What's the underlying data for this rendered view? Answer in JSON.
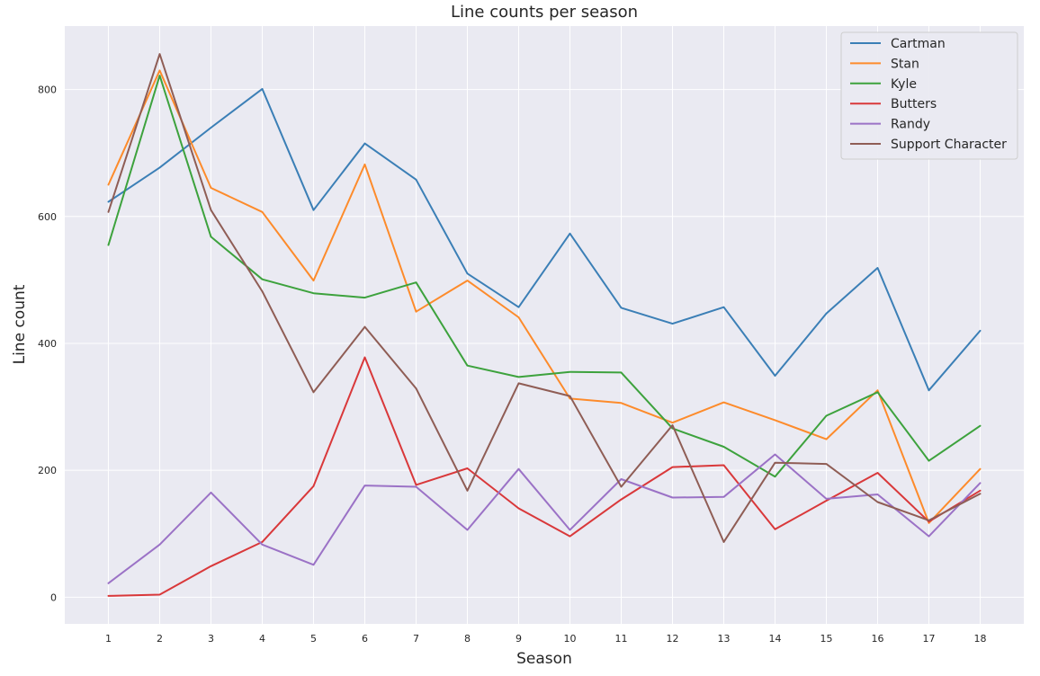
{
  "chart_data": {
    "type": "line",
    "title": "Line counts per season",
    "xlabel": "Season",
    "ylabel": "Line count",
    "x": [
      1,
      2,
      3,
      4,
      5,
      6,
      7,
      8,
      9,
      10,
      11,
      12,
      13,
      14,
      15,
      16,
      17,
      18
    ],
    "x_tick_labels": [
      "1",
      "2",
      "3",
      "4",
      "5",
      "6",
      "7",
      "8",
      "9",
      "10",
      "11",
      "12",
      "13",
      "14",
      "15",
      "16",
      "17",
      "18"
    ],
    "y_ticks": [
      0,
      200,
      400,
      600,
      800
    ],
    "y_tick_labels": [
      "0",
      "200",
      "400",
      "600",
      "800"
    ],
    "xlim": [
      0.15,
      18.85
    ],
    "ylim": [
      -42,
      900
    ],
    "grid": true,
    "legend_position": "upper right",
    "series": [
      {
        "name": "Cartman",
        "color": "#3b7fb6",
        "values": [
          623,
          677,
          740,
          801,
          610,
          715,
          658,
          510,
          457,
          573,
          456,
          431,
          457,
          349,
          447,
          519,
          326,
          420
        ]
      },
      {
        "name": "Stan",
        "color": "#fd8b2b",
        "values": [
          650,
          830,
          645,
          607,
          499,
          682,
          450,
          499,
          441,
          313,
          306,
          275,
          307,
          279,
          249,
          326,
          117,
          202
        ]
      },
      {
        "name": "Kyle",
        "color": "#3da23d",
        "values": [
          555,
          822,
          568,
          501,
          479,
          472,
          496,
          365,
          347,
          355,
          354,
          266,
          237,
          190,
          286,
          323,
          215,
          270
        ]
      },
      {
        "name": "Butters",
        "color": "#d9383a",
        "values": [
          2,
          4,
          49,
          87,
          175,
          378,
          177,
          203,
          140,
          96,
          154,
          205,
          208,
          107,
          152,
          196,
          119,
          168
        ]
      },
      {
        "name": "Randy",
        "color": "#9b72c6",
        "values": [
          22,
          83,
          165,
          83,
          51,
          176,
          174,
          106,
          202,
          106,
          186,
          157,
          158,
          225,
          155,
          162,
          96,
          180
        ]
      },
      {
        "name": "Support Character",
        "color": "#8f5d55",
        "values": [
          607,
          856,
          610,
          482,
          323,
          426,
          329,
          168,
          337,
          317,
          174,
          271,
          87,
          212,
          210,
          150,
          121,
          163
        ]
      }
    ]
  }
}
